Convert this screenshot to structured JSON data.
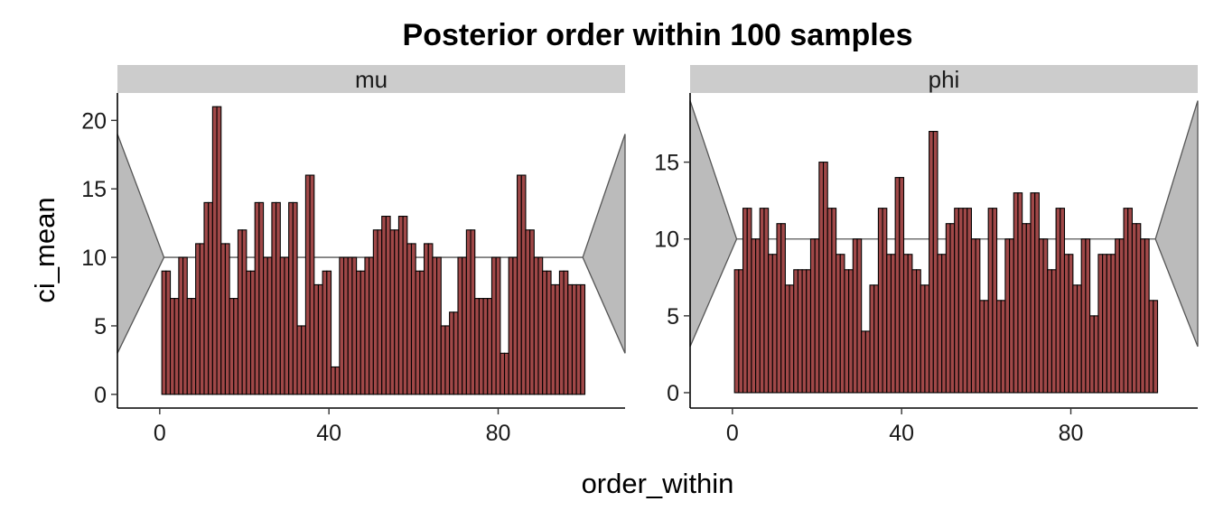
{
  "chart_data": {
    "type": "bar",
    "title": "Posterior order within 100 samples",
    "xlabel": "order_within",
    "ylabel": "ci_mean",
    "colors": {
      "bar_fill": "#a04848",
      "bar_stroke": "#000000",
      "band_fill": "#bbbbbb",
      "band_stroke": "#555555",
      "strip_fill": "#cccccc"
    },
    "grid": false,
    "xlim": [
      -10,
      110
    ],
    "xticks": [
      0,
      40,
      80
    ],
    "panels": [
      {
        "label": "mu",
        "ylim": [
          -1,
          22
        ],
        "yticks": [
          0,
          5,
          10,
          15,
          20
        ],
        "band": {
          "x": [
            -10,
            1,
            100,
            110
          ],
          "top": [
            19,
            10,
            10,
            19
          ],
          "bottom": [
            3,
            10,
            10,
            3
          ]
        },
        "x": [
          1,
          2,
          3,
          4,
          5,
          6,
          7,
          8,
          9,
          10,
          11,
          12,
          13,
          14,
          15,
          16,
          17,
          18,
          19,
          20,
          21,
          22,
          23,
          24,
          25,
          26,
          27,
          28,
          29,
          30,
          31,
          32,
          33,
          34,
          35,
          36,
          37,
          38,
          39,
          40,
          41,
          42,
          43,
          44,
          45,
          46,
          47,
          48,
          49,
          50,
          51,
          52,
          53,
          54,
          55,
          56,
          57,
          58,
          59,
          60,
          61,
          62,
          63,
          64,
          65,
          66,
          67,
          68,
          69,
          70,
          71,
          72,
          73,
          74,
          75,
          76,
          77,
          78,
          79,
          80,
          81,
          82,
          83,
          84,
          85,
          86,
          87,
          88,
          89,
          90,
          91,
          92,
          93,
          94,
          95,
          96,
          97,
          98,
          99,
          100
        ],
        "values": [
          9,
          9,
          7,
          7,
          10,
          10,
          7,
          7,
          11,
          11,
          14,
          14,
          21,
          21,
          11,
          11,
          7,
          7,
          12,
          12,
          9,
          9,
          14,
          14,
          10,
          10,
          14,
          14,
          10,
          10,
          14,
          14,
          5,
          5,
          16,
          16,
          8,
          8,
          9,
          9,
          2,
          2,
          10,
          10,
          10,
          10,
          9,
          9,
          10,
          10,
          12,
          12,
          13,
          13,
          12,
          12,
          13,
          13,
          11,
          11,
          9,
          9,
          11,
          11,
          10,
          10,
          5,
          5,
          6,
          6,
          10,
          10,
          12,
          12,
          7,
          7,
          7,
          7,
          10,
          10,
          3,
          3,
          10,
          10,
          16,
          16,
          12,
          12,
          10,
          10,
          9,
          9,
          8,
          8,
          9,
          9,
          8,
          8,
          8,
          8
        ]
      },
      {
        "label": "phi",
        "ylim": [
          -1,
          19.5
        ],
        "yticks": [
          0,
          5,
          10,
          15
        ],
        "band": {
          "x": [
            -10,
            1,
            100,
            110
          ],
          "top": [
            19,
            10,
            10,
            19
          ],
          "bottom": [
            3,
            10,
            10,
            3
          ]
        },
        "x": [
          1,
          2,
          3,
          4,
          5,
          6,
          7,
          8,
          9,
          10,
          11,
          12,
          13,
          14,
          15,
          16,
          17,
          18,
          19,
          20,
          21,
          22,
          23,
          24,
          25,
          26,
          27,
          28,
          29,
          30,
          31,
          32,
          33,
          34,
          35,
          36,
          37,
          38,
          39,
          40,
          41,
          42,
          43,
          44,
          45,
          46,
          47,
          48,
          49,
          50,
          51,
          52,
          53,
          54,
          55,
          56,
          57,
          58,
          59,
          60,
          61,
          62,
          63,
          64,
          65,
          66,
          67,
          68,
          69,
          70,
          71,
          72,
          73,
          74,
          75,
          76,
          77,
          78,
          79,
          80,
          81,
          82,
          83,
          84,
          85,
          86,
          87,
          88,
          89,
          90,
          91,
          92,
          93,
          94,
          95,
          96,
          97,
          98,
          99,
          100
        ],
        "values": [
          8,
          8,
          12,
          12,
          10,
          10,
          12,
          12,
          9,
          9,
          11,
          11,
          7,
          7,
          8,
          8,
          8,
          8,
          10,
          10,
          15,
          15,
          12,
          12,
          9,
          9,
          8,
          8,
          10,
          10,
          4,
          4,
          7,
          7,
          12,
          12,
          9,
          9,
          14,
          14,
          9,
          9,
          8,
          8,
          7,
          7,
          17,
          17,
          9,
          9,
          11,
          11,
          12,
          12,
          12,
          12,
          10,
          10,
          6,
          6,
          12,
          12,
          6,
          6,
          10,
          10,
          13,
          13,
          11,
          11,
          13,
          13,
          10,
          10,
          8,
          8,
          12,
          12,
          9,
          9,
          7,
          7,
          10,
          10,
          5,
          5,
          9,
          9,
          9,
          9,
          10,
          10,
          12,
          12,
          11,
          11,
          10,
          10,
          6,
          6
        ]
      }
    ]
  }
}
